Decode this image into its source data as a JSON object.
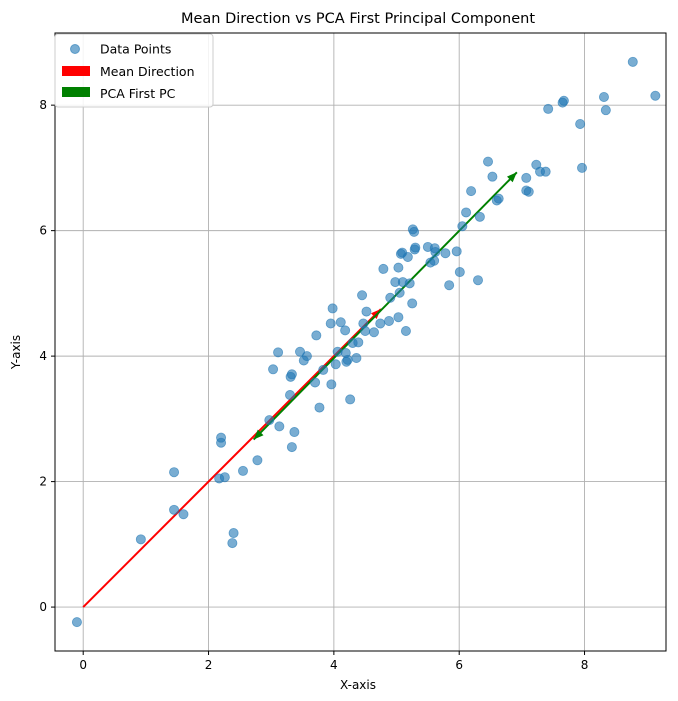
{
  "chart_data": {
    "type": "scatter",
    "title": "Mean Direction vs PCA First Principal Component",
    "xlabel": "X-axis",
    "ylabel": "Y-axis",
    "xlim": [
      -0.45,
      9.3
    ],
    "ylim": [
      -0.7,
      9.15
    ],
    "xticks": [
      0,
      2,
      4,
      6,
      8
    ],
    "yticks": [
      0,
      2,
      4,
      6,
      8
    ],
    "grid": true,
    "legend_position": "top-left",
    "colors": {
      "points": "#1f77b4",
      "mean": "#ff0000",
      "pca": "#008000",
      "grid": "#b0b0b0"
    },
    "series": [
      {
        "name": "Data Points",
        "kind": "scatter",
        "points": [
          [
            -0.1,
            -0.24
          ],
          [
            0.92,
            1.08
          ],
          [
            1.45,
            1.55
          ],
          [
            1.6,
            1.48
          ],
          [
            1.45,
            2.15
          ],
          [
            2.2,
            2.62
          ],
          [
            2.2,
            2.7
          ],
          [
            2.17,
            2.05
          ],
          [
            2.26,
            2.07
          ],
          [
            2.38,
            1.02
          ],
          [
            2.4,
            1.18
          ],
          [
            2.55,
            2.17
          ],
          [
            2.78,
            2.34
          ],
          [
            2.97,
            2.98
          ],
          [
            3.13,
            2.88
          ],
          [
            3.3,
            3.38
          ],
          [
            3.33,
            2.55
          ],
          [
            3.37,
            2.79
          ],
          [
            3.03,
            3.79
          ],
          [
            3.11,
            4.06
          ],
          [
            3.31,
            3.67
          ],
          [
            3.33,
            3.71
          ],
          [
            3.46,
            4.07
          ],
          [
            3.52,
            3.93
          ],
          [
            3.57,
            4.0
          ],
          [
            3.7,
            3.58
          ],
          [
            3.72,
            4.33
          ],
          [
            3.77,
            3.18
          ],
          [
            3.83,
            3.78
          ],
          [
            3.96,
            3.55
          ],
          [
            3.95,
            4.52
          ],
          [
            3.98,
            4.76
          ],
          [
            4.03,
            3.87
          ],
          [
            4.06,
            4.07
          ],
          [
            4.11,
            4.54
          ],
          [
            4.18,
            4.41
          ],
          [
            4.19,
            4.05
          ],
          [
            4.2,
            3.91
          ],
          [
            4.22,
            3.94
          ],
          [
            4.26,
            3.31
          ],
          [
            4.3,
            4.21
          ],
          [
            4.36,
            3.97
          ],
          [
            4.39,
            4.22
          ],
          [
            4.45,
            4.97
          ],
          [
            4.47,
            4.52
          ],
          [
            4.5,
            4.4
          ],
          [
            4.52,
            4.71
          ],
          [
            4.64,
            4.38
          ],
          [
            4.74,
            4.52
          ],
          [
            4.79,
            5.39
          ],
          [
            4.88,
            4.56
          ],
          [
            4.9,
            4.93
          ],
          [
            4.98,
            5.18
          ],
          [
            5.03,
            4.62
          ],
          [
            5.03,
            5.41
          ],
          [
            5.05,
            5.01
          ],
          [
            5.07,
            5.63
          ],
          [
            5.1,
            5.18
          ],
          [
            5.09,
            5.65
          ],
          [
            5.15,
            4.4
          ],
          [
            5.18,
            5.58
          ],
          [
            5.21,
            5.16
          ],
          [
            5.25,
            4.84
          ],
          [
            5.26,
            6.02
          ],
          [
            5.28,
            5.98
          ],
          [
            5.29,
            5.7
          ],
          [
            5.3,
            5.73
          ],
          [
            5.5,
            5.74
          ],
          [
            5.54,
            5.49
          ],
          [
            5.6,
            5.52
          ],
          [
            5.62,
            5.66
          ],
          [
            5.61,
            5.72
          ],
          [
            5.78,
            5.64
          ],
          [
            5.84,
            5.13
          ],
          [
            5.96,
            5.67
          ],
          [
            6.01,
            5.34
          ],
          [
            6.05,
            6.07
          ],
          [
            6.11,
            6.29
          ],
          [
            6.19,
            6.63
          ],
          [
            6.3,
            5.21
          ],
          [
            6.33,
            6.22
          ],
          [
            6.46,
            7.1
          ],
          [
            6.53,
            6.86
          ],
          [
            6.6,
            6.48
          ],
          [
            6.63,
            6.51
          ],
          [
            7.07,
            6.84
          ],
          [
            7.07,
            6.64
          ],
          [
            7.11,
            6.62
          ],
          [
            7.23,
            7.05
          ],
          [
            7.29,
            6.94
          ],
          [
            7.38,
            6.94
          ],
          [
            7.42,
            7.94
          ],
          [
            7.65,
            8.04
          ],
          [
            7.67,
            8.07
          ],
          [
            7.93,
            7.7
          ],
          [
            7.96,
            7.0
          ],
          [
            8.31,
            8.13
          ],
          [
            8.34,
            7.92
          ],
          [
            8.77,
            8.69
          ],
          [
            9.13,
            8.15
          ]
        ]
      },
      {
        "name": "Mean Direction",
        "kind": "arrow",
        "from": [
          0,
          0
        ],
        "to": [
          4.75,
          4.75
        ]
      },
      {
        "name": "PCA First PC",
        "kind": "double-arrow",
        "from": [
          2.72,
          2.67
        ],
        "to": [
          6.92,
          6.93
        ]
      }
    ],
    "legend": [
      "Data Points",
      "Mean Direction",
      "PCA First PC"
    ]
  }
}
